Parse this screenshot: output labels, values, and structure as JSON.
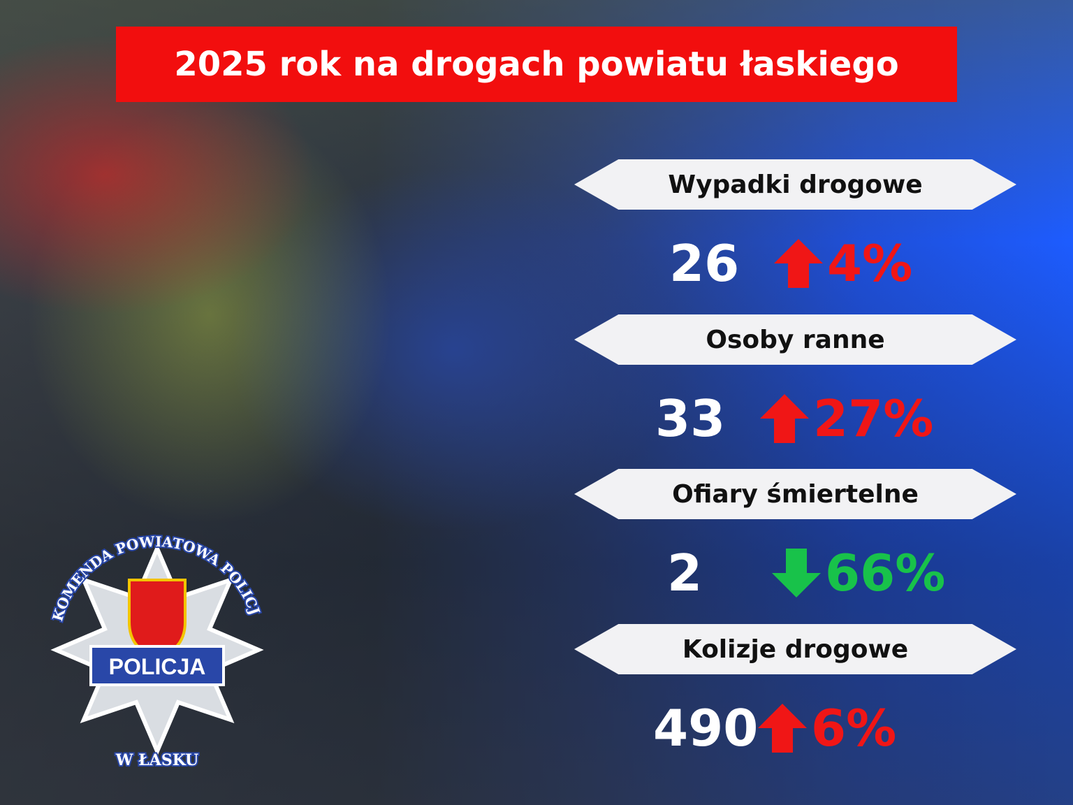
{
  "title": "2025 rok na drogach powiatu łaskiego",
  "stats": [
    {
      "label": "Wypadki drogowe",
      "value": "26",
      "trend": "up",
      "change": "4%"
    },
    {
      "label": "Osoby ranne",
      "value": "33",
      "trend": "up",
      "change": "27%"
    },
    {
      "label": "Ofiary śmiertelne",
      "value": "2",
      "trend": "down",
      "change": "66%"
    },
    {
      "label": "Kolizje drogowe",
      "value": "490",
      "trend": "up",
      "change": "6%"
    }
  ],
  "colors": {
    "title_bg": "#f20e0e",
    "up": "#f01616",
    "down": "#18c24a",
    "accent_blue": "#1d5cff"
  },
  "logo": {
    "top_text": "KOMENDA POWIATOWA POLICJI",
    "center_text": "POLICJA",
    "bottom_text": "W ŁASKU"
  }
}
